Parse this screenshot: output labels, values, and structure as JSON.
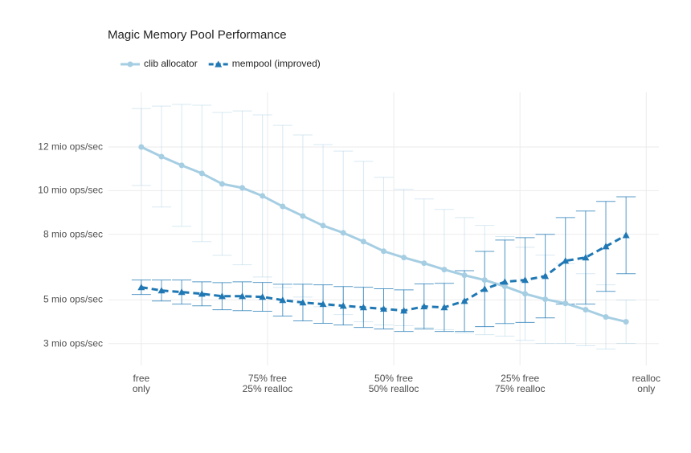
{
  "chart_data": {
    "type": "line",
    "title": "Magic Memory Pool Performance",
    "x": [
      0,
      4,
      8,
      12,
      16,
      20,
      24,
      28,
      32,
      36,
      40,
      44,
      48,
      52,
      56,
      60,
      64,
      68,
      72,
      76,
      80,
      84,
      88,
      92,
      96
    ],
    "series": [
      {
        "name": "clib allocator",
        "color": "#a6cee3",
        "marker": "circle",
        "dash": false,
        "values": [
          12.0,
          11.56,
          11.16,
          10.79,
          10.31,
          10.13,
          9.76,
          9.28,
          8.84,
          8.4,
          8.07,
          7.67,
          7.23,
          6.94,
          6.68,
          6.39,
          6.13,
          5.91,
          5.62,
          5.28,
          5.03,
          4.84,
          4.55,
          4.22,
          4.0
        ],
        "errors": [
          1.76,
          2.31,
          2.79,
          3.12,
          3.27,
          3.52,
          3.71,
          3.71,
          3.71,
          3.71,
          3.74,
          3.67,
          3.38,
          3.12,
          2.94,
          2.75,
          2.64,
          2.5,
          2.28,
          2.13,
          2.02,
          1.83,
          1.65,
          1.47,
          0.99
        ]
      },
      {
        "name": "mempool (improved)",
        "color": "#1f78b4",
        "marker": "triangle",
        "dash": true,
        "values": [
          5.58,
          5.43,
          5.36,
          5.28,
          5.17,
          5.17,
          5.14,
          4.99,
          4.88,
          4.81,
          4.73,
          4.66,
          4.59,
          4.51,
          4.7,
          4.66,
          4.95,
          5.5,
          5.83,
          5.91,
          6.09,
          6.79,
          6.94,
          7.45,
          7.96
        ],
        "errors": [
          0.33,
          0.48,
          0.55,
          0.55,
          0.62,
          0.66,
          0.66,
          0.73,
          0.84,
          0.88,
          0.88,
          0.92,
          0.92,
          0.95,
          1.03,
          1.1,
          1.39,
          1.72,
          1.91,
          1.94,
          1.91,
          1.98,
          2.13,
          2.06,
          1.76
        ]
      }
    ],
    "xlim": [
      -6.5,
      102.5
    ],
    "xticks": [
      {
        "value": 0,
        "label": "free\nonly"
      },
      {
        "value": 25,
        "label": "75% free\n25% realloc"
      },
      {
        "value": 50,
        "label": "50% free\n50% realloc"
      },
      {
        "value": 75,
        "label": "25% free\n75% realloc"
      },
      {
        "value": 100,
        "label": "realloc\nonly"
      }
    ],
    "ylim": [
      2,
      14.5
    ],
    "yticks": [
      {
        "value": 12,
        "label": "12 mio ops/sec"
      },
      {
        "value": 10,
        "label": "10 mio ops/sec"
      },
      {
        "value": 8,
        "label": "8 mio ops/sec"
      },
      {
        "value": 5,
        "label": "5 mio ops/sec"
      },
      {
        "value": 3,
        "label": "3 mio ops/sec"
      }
    ],
    "grid": true,
    "legend": "top"
  }
}
